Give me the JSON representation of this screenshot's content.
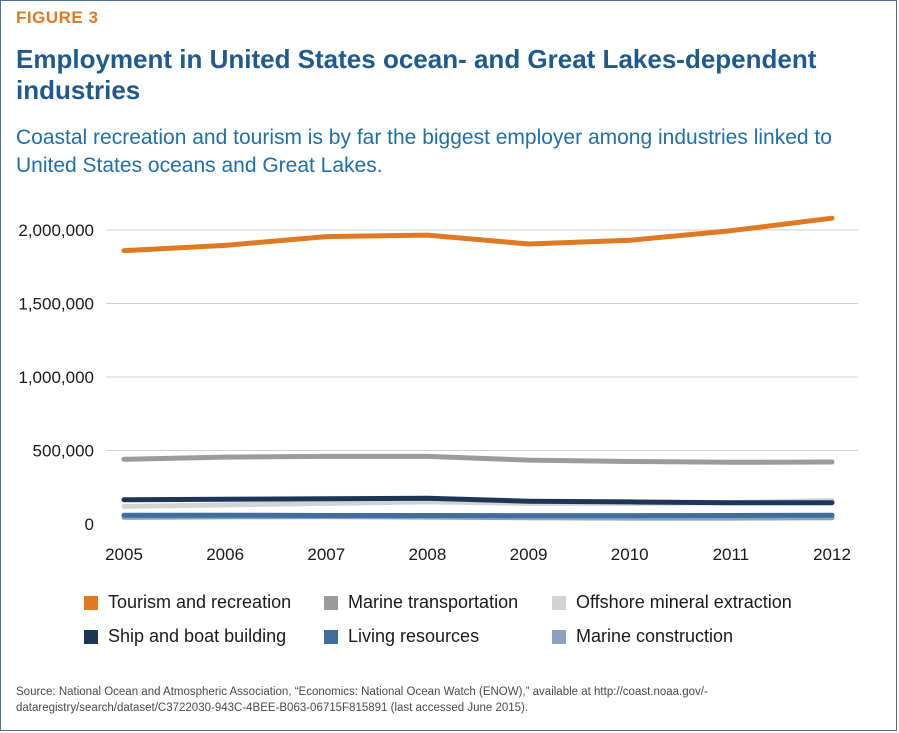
{
  "figure_label": "FIGURE 3",
  "title": "Employment in United States ocean- and Great Lakes-dependent industries",
  "subtitle": "Coastal recreation and tourism is by far the biggest employer among industries linked to United States oceans and Great Lakes.",
  "source": "Source: National Ocean and Atmospheric Association, “Economics: National Ocean Watch (ENOW),” available at http://coast.noaa.gov/-dataregistry/search/dataset/C3722030-943C-4BEE-B063-06715F815891 (last accessed June 2015).",
  "chart_data": {
    "type": "line",
    "x": [
      "2005",
      "2006",
      "2007",
      "2008",
      "2009",
      "2010",
      "2011",
      "2012"
    ],
    "ylim": [
      0,
      2000000
    ],
    "yticks": [
      0,
      500000,
      1000000,
      1500000,
      2000000
    ],
    "ytick_labels": [
      "0",
      "500,000",
      "1,000,000",
      "1,500,000",
      "2,000,000"
    ],
    "grid": true,
    "legend_position": "bottom",
    "series": [
      {
        "name": "Tourism and recreation",
        "color": "#e07a22",
        "values": [
          1860000,
          1895000,
          1955000,
          1965000,
          1905000,
          1930000,
          1995000,
          2080000
        ]
      },
      {
        "name": "Marine transportation",
        "color": "#9b9b9b",
        "values": [
          440000,
          455000,
          460000,
          460000,
          435000,
          425000,
          420000,
          422000
        ]
      },
      {
        "name": "Offshore mineral extraction",
        "color": "#d3d3d3",
        "values": [
          120000,
          130000,
          140000,
          150000,
          140000,
          140000,
          145000,
          160000
        ]
      },
      {
        "name": "Ship and boat building",
        "color": "#1d3557",
        "values": [
          165000,
          168000,
          172000,
          175000,
          155000,
          150000,
          145000,
          145000
        ]
      },
      {
        "name": "Living resources",
        "color": "#3f6e9c",
        "values": [
          60000,
          60000,
          58000,
          58000,
          57000,
          57000,
          58000,
          60000
        ]
      },
      {
        "name": "Marine construction",
        "color": "#8aa2bd",
        "values": [
          45000,
          48000,
          50000,
          47000,
          42000,
          40000,
          40000,
          42000
        ]
      }
    ]
  }
}
